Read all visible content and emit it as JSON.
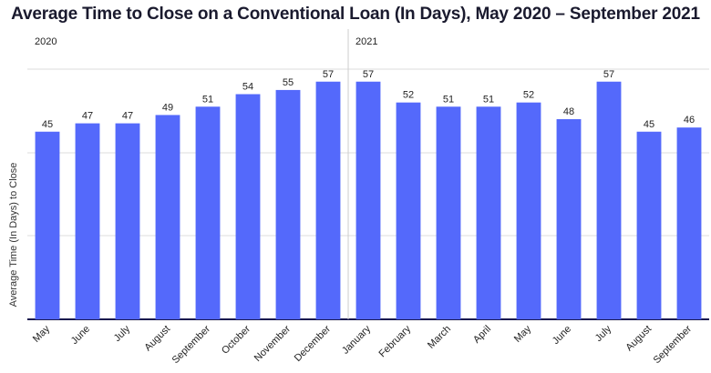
{
  "chart_data": {
    "type": "bar",
    "title": "Average Time to Close on a Conventional Loan (In Days), May 2020 – September 2021",
    "xlabel": "",
    "ylabel": "Average Time (In Days) to Close",
    "ylim": [
      0,
      60
    ],
    "grid": true,
    "bar_color": "#5469fb",
    "year_groups": [
      {
        "label": "2020",
        "start_index": 0
      },
      {
        "label": "2021",
        "start_index": 8
      }
    ],
    "categories": [
      "May",
      "June",
      "July",
      "August",
      "September",
      "October",
      "November",
      "December",
      "January",
      "February",
      "March",
      "April",
      "May",
      "June",
      "July",
      "August",
      "September"
    ],
    "values": [
      45,
      47,
      47,
      49,
      51,
      54,
      55,
      57,
      57,
      52,
      51,
      51,
      52,
      48,
      57,
      45,
      46
    ]
  }
}
